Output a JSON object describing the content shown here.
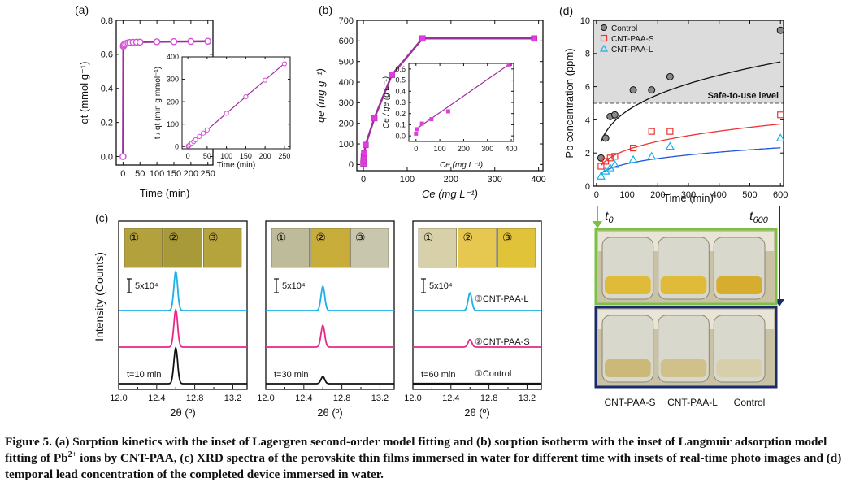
{
  "caption": {
    "part1": "Figure 5. (a) Sorption kinetics with the inset of Lagergren second-order model fitting and (b) sorption isotherm with the inset of Langmuir adsorption model fitting of Pb",
    "sup": "2+",
    "part2": " ions by CNT-PAA, (c) XRD spectra of the perovskite thin films immersed in water for different time with insets of real-time photo images and (d) temporal lead concentration of the completed device immersed in water."
  },
  "colors": {
    "purple": "#9b2f9b",
    "black": "#111111",
    "blue": "#1ab0e8",
    "pink": "#e8278a",
    "red": "#ee3333",
    "green": "#7dc142",
    "navy": "#1a2a6c",
    "film": "#c8b43c"
  },
  "chart_data": [
    {
      "id": "a",
      "type": "line",
      "panel_label": "(a)",
      "xlabel": "Time (min)",
      "ylabel": "qt (mmol g⁻¹)",
      "xlim": [
        -20,
        265
      ],
      "ylim": [
        -0.05,
        0.8
      ],
      "xticks": [
        "0",
        "50",
        "100",
        "150",
        "200",
        "250"
      ],
      "yticks": [
        "0.0",
        "0.2",
        "0.4",
        "0.6",
        "0.8"
      ],
      "series": [
        {
          "x": [
            0,
            1,
            2,
            5,
            10,
            15,
            20,
            30,
            40,
            50,
            100,
            150,
            200,
            250
          ],
          "y": [
            0.0,
            0.648,
            0.655,
            0.66,
            0.665,
            0.668,
            0.67,
            0.671,
            0.672,
            0.672,
            0.674,
            0.675,
            0.676,
            0.677
          ]
        }
      ],
      "inset": {
        "type": "scatter",
        "xlabel": "Time (min)",
        "ylabel": "t / qt (min g mmol⁻¹)",
        "xlim": [
          -15,
          265
        ],
        "ylim": [
          -10,
          400
        ],
        "xticks": [
          "0",
          "50",
          "100",
          "150",
          "200",
          "250"
        ],
        "yticks": [
          "0",
          "100",
          "200",
          "300",
          "400"
        ],
        "x": [
          1,
          2,
          5,
          10,
          15,
          20,
          30,
          40,
          50,
          100,
          150,
          200,
          250
        ],
        "y": [
          2,
          3,
          8,
          15,
          22,
          30,
          45,
          60,
          74,
          148,
          222,
          296,
          369
        ],
        "fit": [
          [
            0,
            0
          ],
          [
            255,
            378
          ]
        ]
      }
    },
    {
      "id": "b",
      "type": "line",
      "panel_label": "(b)",
      "xlabel": "Ce (mg L⁻¹)",
      "ylabel": "qe (mg g⁻¹)",
      "xlim": [
        -15,
        410
      ],
      "ylim": [
        -30,
        700
      ],
      "xticks": [
        "0",
        "100",
        "200",
        "300",
        "400"
      ],
      "yticks": [
        "0",
        "100",
        "200",
        "300",
        "400",
        "500",
        "600",
        "700"
      ],
      "series": [
        {
          "x": [
            0,
            0.5,
            1,
            2,
            5,
            25,
            65,
            135,
            390
          ],
          "y": [
            5,
            20,
            40,
            55,
            95,
            225,
            435,
            612,
            612
          ]
        }
      ],
      "inset": {
        "type": "scatter",
        "xlabel": "Ce (mg L⁻¹)",
        "ylabel": "Ce / qe (g L⁻¹)",
        "xlim": [
          -30,
          410
        ],
        "ylim": [
          -0.05,
          0.65
        ],
        "xticks": [
          "0",
          "100",
          "200",
          "300",
          "400"
        ],
        "yticks": [
          "0.0",
          "0.1",
          "0.2",
          "0.3",
          "0.4",
          "0.5",
          "0.6"
        ],
        "x": [
          0,
          5,
          25,
          65,
          135,
          390
        ],
        "y": [
          0.02,
          0.06,
          0.11,
          0.15,
          0.22,
          0.64
        ],
        "fit": [
          [
            0,
            0.06
          ],
          [
            390,
            0.64
          ]
        ]
      }
    },
    {
      "id": "c",
      "type": "line",
      "panel_label": "(c)",
      "ylabel": "Intensity (Counts)",
      "photo_labels": [
        "①",
        "②",
        "③"
      ],
      "scale_label": "5x10⁴",
      "subpanels": [
        {
          "xlabel": "2θ (º)",
          "xlim": [
            12.0,
            13.35
          ],
          "xticks": [
            "12.0",
            "12.4",
            "12.8",
            "13.2"
          ],
          "xticks_minor": [
            "12.2",
            "12.6",
            "13.0"
          ],
          "time_label": "t=10 min",
          "heights": [
            1.0,
            1.0,
            1.0
          ],
          "tint": [
            "#b3a13e",
            "#a89a38",
            "#b5a33c"
          ]
        },
        {
          "xlabel": "2θ (º)",
          "xlim": [
            12.0,
            13.35
          ],
          "xticks": [
            "12.0",
            "12.4",
            "12.8",
            "13.2"
          ],
          "xticks_minor": [
            "12.2",
            "12.6",
            "13.0"
          ],
          "time_label": "t=30 min",
          "heights": [
            0.62,
            0.58,
            0.2
          ],
          "tint": [
            "#bdbb9a",
            "#c8ad3a",
            "#c9c6ae"
          ]
        },
        {
          "xlabel": "2θ (º)",
          "xlim": [
            12.0,
            13.35
          ],
          "xticks": [
            "12.0",
            "12.4",
            "12.8",
            "13.2"
          ],
          "xticks_minor": [
            "12.2",
            "12.6",
            "13.0"
          ],
          "time_label": "t=60 min",
          "heights": [
            0.45,
            0.2,
            0.0
          ],
          "tint": [
            "#d8d0a8",
            "#e6c850",
            "#e1c33a"
          ]
        }
      ],
      "series": [
        {
          "name": "③CNT-PAA-L",
          "color": "#1ab0e8",
          "peak_2theta": 12.6
        },
        {
          "name": "②CNT-PAA-S",
          "color": "#e8278a",
          "peak_2theta": 12.6
        },
        {
          "name": "①Control",
          "color": "#111111",
          "peak_2theta": 12.6
        }
      ]
    },
    {
      "id": "d",
      "type": "scatter",
      "panel_label": "(d)",
      "xlabel": "Time (min)",
      "ylabel": "Pb concentration (ppm)",
      "xlim": [
        -10,
        610
      ],
      "ylim": [
        0,
        10
      ],
      "xticks": [
        "0",
        "100",
        "200",
        "300",
        "400",
        "500",
        "600"
      ],
      "yticks": [
        "0",
        "2",
        "4",
        "6",
        "8",
        "10"
      ],
      "threshold": {
        "value": 5,
        "label": "Safe-to-use level"
      },
      "series": [
        {
          "name": "Control",
          "color": "#111111",
          "marker": "circle",
          "x": [
            15,
            30,
            45,
            60,
            120,
            180,
            240,
            600
          ],
          "y": [
            1.7,
            2.9,
            4.2,
            4.3,
            5.8,
            5.8,
            6.6,
            9.4
          ]
        },
        {
          "name": "CNT-PAA-S",
          "color": "#ee3333",
          "marker": "square",
          "x": [
            15,
            30,
            45,
            60,
            120,
            180,
            240,
            600
          ],
          "y": [
            1.2,
            1.5,
            1.7,
            1.8,
            2.3,
            3.3,
            3.3,
            4.3
          ]
        },
        {
          "name": "CNT-PAA-L",
          "color": "#1ab0e8",
          "marker": "triangle",
          "x": [
            15,
            30,
            45,
            60,
            120,
            180,
            240,
            600
          ],
          "y": [
            0.6,
            0.9,
            1.1,
            1.3,
            1.6,
            1.8,
            2.4,
            2.9
          ]
        }
      ],
      "photos": {
        "t_start": "t",
        "t_start_sub": "0",
        "t_end": "t",
        "t_end_sub": "600",
        "labels": [
          "CNT-PAA-S",
          "CNT-PAA-L",
          "Control"
        ]
      }
    }
  ]
}
